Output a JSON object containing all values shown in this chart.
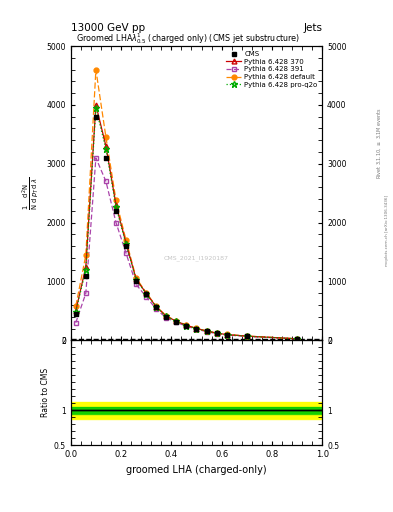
{
  "title_main": "13000 GeV pp",
  "title_right": "Jets",
  "plot_title": "Groomed LHA$\\lambda^{1}_{0.5}$ (charged only) (CMS jet substructure)",
  "xlabel": "groomed LHA (charged-only)",
  "ylabel_main": "$\\mathrm{N}$ /  $\\mathrm{d}\\,p_T\\,\\mathrm{d}\\,\\lambda$",
  "ylabel_ratio": "Ratio to CMS",
  "right_label": "Rivet 3.1.10, $\\geq$ 3.1M events",
  "right_label2": "mcplots.cern.ch [arXiv:1306.3436]",
  "watermark": "CMS_2021_I1920187",
  "x_data": [
    0.02,
    0.06,
    0.1,
    0.14,
    0.18,
    0.22,
    0.26,
    0.3,
    0.34,
    0.38,
    0.42,
    0.46,
    0.5,
    0.54,
    0.58,
    0.62,
    0.7,
    0.9
  ],
  "cms_data": [
    450,
    1100,
    3800,
    3100,
    2200,
    1600,
    1000,
    780,
    560,
    400,
    320,
    250,
    195,
    155,
    120,
    95,
    70,
    25
  ],
  "p370_data": [
    500,
    1250,
    4000,
    3300,
    2300,
    1650,
    1040,
    800,
    570,
    410,
    325,
    255,
    200,
    160,
    123,
    98,
    72,
    26
  ],
  "p391_data": [
    300,
    800,
    3100,
    2700,
    2000,
    1480,
    950,
    740,
    530,
    380,
    305,
    240,
    188,
    148,
    114,
    91,
    67,
    24
  ],
  "pdefault_data": [
    580,
    1450,
    4600,
    3450,
    2380,
    1700,
    1060,
    810,
    578,
    415,
    330,
    258,
    202,
    162,
    125,
    100,
    73,
    27
  ],
  "pproq2o_data": [
    490,
    1200,
    3950,
    3250,
    2270,
    1630,
    1030,
    795,
    566,
    406,
    322,
    252,
    197,
    157,
    121,
    97,
    71,
    26
  ],
  "ratio_green_upper": 1.05,
  "ratio_green_lower": 0.95,
  "ratio_yellow_upper": 1.12,
  "ratio_yellow_lower": 0.88,
  "ylim_main": [
    0,
    5000
  ],
  "ylim_ratio": [
    0.5,
    2.0
  ],
  "yticks_main": [
    0,
    1000,
    2000,
    3000,
    4000,
    5000
  ],
  "ytick_labels_main": [
    "0",
    "1000",
    "2000",
    "3000",
    "4000",
    "5000"
  ],
  "colors": {
    "cms": "#000000",
    "p370": "#cc0000",
    "p391": "#aa44aa",
    "pdefault": "#ff8800",
    "pproq2o": "#00aa00"
  }
}
